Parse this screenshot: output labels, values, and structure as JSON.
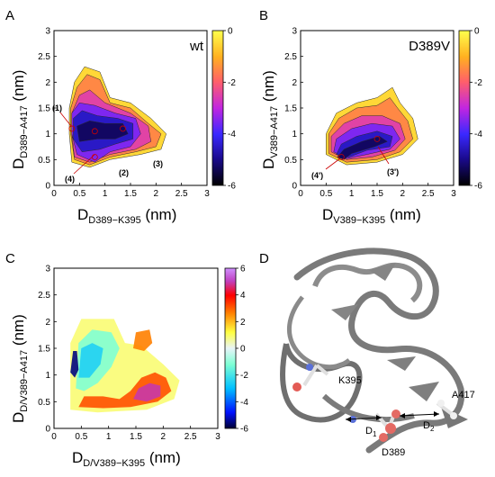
{
  "panels": [
    {
      "letter": "A",
      "tag": "wt",
      "xlabel": {
        "main": "D",
        "sub": "D389−K395",
        "unit": " (nm)"
      },
      "ylabel": {
        "main": "D",
        "sub": "D389−A417",
        "unit": " (nm)"
      },
      "peaks": [
        "(1)",
        "(2)",
        "(3)",
        "(4)"
      ]
    },
    {
      "letter": "B",
      "tag": "D389V",
      "xlabel": {
        "main": "D",
        "sub": "V389−K395",
        "unit": " (nm)"
      },
      "ylabel": {
        "main": "D",
        "sub": "V389−A417",
        "unit": " (nm)"
      },
      "peaks": [
        "(3')",
        "(4')"
      ]
    },
    {
      "letter": "C",
      "tag": "",
      "xlabel": {
        "main": "D",
        "sub": "D/V389−K395",
        "unit": " (nm)"
      },
      "ylabel": {
        "main": "D",
        "sub": "D/V389−A417",
        "unit": " (nm)"
      },
      "peaks": []
    },
    {
      "letter": "D",
      "tag": "",
      "residues": [
        "K395",
        "D389",
        "A417"
      ],
      "distances": [
        {
          "main": "D",
          "sub": "1"
        },
        {
          "main": "D",
          "sub": "2"
        }
      ]
    }
  ],
  "chart_data": [
    {
      "type": "heatmap",
      "panel": "A",
      "title": "wt",
      "xlabel": "D_D389−K395 (nm)",
      "ylabel": "D_D389−A417 (nm)",
      "xlim": [
        0,
        3
      ],
      "ylim": [
        0,
        3
      ],
      "xticks": [
        "0",
        "0.5",
        "1",
        "1.5",
        "2",
        "2.5",
        "3"
      ],
      "yticks": [
        "0",
        "0.5",
        "1",
        "1.5",
        "2",
        "2.5",
        "3"
      ],
      "colorbar": {
        "ticks": [
          "0",
          "-2",
          "-4",
          "-6"
        ],
        "range": [
          -6,
          0
        ],
        "colors": [
          "#000000",
          "#1a0a8c",
          "#3a28ff",
          "#c226e0",
          "#ff5f6a",
          "#ffb020",
          "#ffff4d"
        ]
      },
      "minima": [
        {
          "label": "(1)",
          "x": 0.35,
          "y": 1.1
        },
        {
          "label": "(2)",
          "x": 0.8,
          "y": 1.05
        },
        {
          "label": "(3)",
          "x": 1.35,
          "y": 1.1
        },
        {
          "label": "(4)",
          "x": 0.8,
          "y": 0.55
        }
      ],
      "levels": [
        {
          "value": -0.5,
          "points": [
            [
              0.3,
              1.5
            ],
            [
              0.4,
              2.0
            ],
            [
              0.6,
              2.3
            ],
            [
              0.9,
              2.2
            ],
            [
              1.1,
              1.7
            ],
            [
              1.5,
              1.6
            ],
            [
              1.9,
              1.3
            ],
            [
              2.2,
              1.0
            ],
            [
              2.1,
              0.7
            ],
            [
              1.7,
              0.6
            ],
            [
              1.1,
              0.5
            ],
            [
              0.7,
              0.35
            ],
            [
              0.35,
              0.45
            ],
            [
              0.3,
              1.0
            ]
          ]
        },
        {
          "value": -1.5,
          "points": [
            [
              0.33,
              1.5
            ],
            [
              0.45,
              1.9
            ],
            [
              0.65,
              2.15
            ],
            [
              0.9,
              2.05
            ],
            [
              1.1,
              1.6
            ],
            [
              1.5,
              1.5
            ],
            [
              1.85,
              1.2
            ],
            [
              2.1,
              1.0
            ],
            [
              2.0,
              0.75
            ],
            [
              1.6,
              0.65
            ],
            [
              1.1,
              0.55
            ],
            [
              0.7,
              0.4
            ],
            [
              0.4,
              0.5
            ],
            [
              0.33,
              1.0
            ]
          ]
        },
        {
          "value": -2.5,
          "points": [
            [
              0.35,
              1.4
            ],
            [
              0.5,
              1.75
            ],
            [
              0.7,
              1.85
            ],
            [
              1.0,
              1.6
            ],
            [
              1.5,
              1.4
            ],
            [
              1.85,
              1.15
            ],
            [
              1.9,
              0.85
            ],
            [
              1.6,
              0.7
            ],
            [
              1.1,
              0.6
            ],
            [
              0.7,
              0.45
            ],
            [
              0.4,
              0.55
            ],
            [
              0.35,
              1.0
            ]
          ]
        },
        {
          "value": -3.5,
          "points": [
            [
              0.35,
              1.4
            ],
            [
              0.5,
              1.6
            ],
            [
              0.8,
              1.55
            ],
            [
              1.2,
              1.4
            ],
            [
              1.6,
              1.3
            ],
            [
              1.7,
              1.0
            ],
            [
              1.5,
              0.75
            ],
            [
              1.1,
              0.65
            ],
            [
              0.8,
              0.45
            ],
            [
              0.45,
              0.6
            ],
            [
              0.35,
              1.0
            ]
          ]
        },
        {
          "value": -4.5,
          "points": [
            [
              0.38,
              1.3
            ],
            [
              0.55,
              1.45
            ],
            [
              0.85,
              1.35
            ],
            [
              1.25,
              1.3
            ],
            [
              1.55,
              1.2
            ],
            [
              1.55,
              0.9
            ],
            [
              1.2,
              0.8
            ],
            [
              0.9,
              0.7
            ],
            [
              0.55,
              0.65
            ],
            [
              0.38,
              0.9
            ]
          ]
        },
        {
          "value": -5.3,
          "points": [
            [
              0.45,
              1.15
            ],
            [
              0.7,
              1.25
            ],
            [
              1.0,
              1.2
            ],
            [
              1.35,
              1.2
            ],
            [
              1.45,
              1.0
            ],
            [
              1.2,
              0.9
            ],
            [
              0.85,
              0.9
            ],
            [
              0.5,
              0.85
            ]
          ]
        }
      ]
    },
    {
      "type": "heatmap",
      "panel": "B",
      "title": "D389V",
      "xlabel": "D_V389−K395 (nm)",
      "ylabel": "D_V389−A417 (nm)",
      "xlim": [
        0,
        3
      ],
      "ylim": [
        0,
        3
      ],
      "xticks": [
        "0",
        "0.5",
        "1",
        "1.5",
        "2",
        "2.5",
        "3"
      ],
      "yticks": [
        "0",
        "0.5",
        "1",
        "1.5",
        "2",
        "2.5",
        "3"
      ],
      "colorbar": {
        "ticks": [
          "0",
          "-2",
          "-4",
          "-6"
        ],
        "range": [
          -6,
          0
        ],
        "colors": [
          "#000000",
          "#1a0a8c",
          "#3a28ff",
          "#c226e0",
          "#ff5f6a",
          "#ffb020",
          "#ffff4d"
        ]
      },
      "minima": [
        {
          "label": "(3')",
          "x": 1.5,
          "y": 0.9
        },
        {
          "label": "(4')",
          "x": 0.8,
          "y": 0.55
        }
      ],
      "levels": [
        {
          "value": -0.5,
          "points": [
            [
              0.5,
              0.6
            ],
            [
              0.5,
              1.0
            ],
            [
              0.7,
              1.4
            ],
            [
              1.1,
              1.6
            ],
            [
              1.5,
              1.7
            ],
            [
              1.8,
              1.9
            ],
            [
              1.95,
              1.6
            ],
            [
              2.2,
              1.3
            ],
            [
              2.3,
              0.9
            ],
            [
              2.0,
              0.6
            ],
            [
              1.5,
              0.45
            ],
            [
              0.9,
              0.4
            ]
          ]
        },
        {
          "value": -1.5,
          "points": [
            [
              0.55,
              0.62
            ],
            [
              0.55,
              1.0
            ],
            [
              0.75,
              1.3
            ],
            [
              1.1,
              1.5
            ],
            [
              1.5,
              1.55
            ],
            [
              1.75,
              1.7
            ],
            [
              1.9,
              1.5
            ],
            [
              2.1,
              1.25
            ],
            [
              2.2,
              0.9
            ],
            [
              1.95,
              0.65
            ],
            [
              1.5,
              0.5
            ],
            [
              0.9,
              0.45
            ]
          ]
        },
        {
          "value": -2.5,
          "points": [
            [
              0.6,
              0.65
            ],
            [
              0.6,
              0.95
            ],
            [
              0.85,
              1.2
            ],
            [
              1.2,
              1.35
            ],
            [
              1.6,
              1.35
            ],
            [
              1.95,
              1.2
            ],
            [
              2.05,
              0.9
            ],
            [
              1.85,
              0.68
            ],
            [
              1.4,
              0.55
            ],
            [
              0.9,
              0.5
            ]
          ]
        },
        {
          "value": -3.5,
          "points": [
            [
              0.65,
              0.65
            ],
            [
              0.7,
              0.9
            ],
            [
              1.0,
              1.1
            ],
            [
              1.4,
              1.2
            ],
            [
              1.8,
              1.15
            ],
            [
              1.95,
              0.9
            ],
            [
              1.75,
              0.7
            ],
            [
              1.3,
              0.6
            ],
            [
              0.9,
              0.52
            ]
          ]
        },
        {
          "value": -4.5,
          "points": [
            [
              0.7,
              0.6
            ],
            [
              0.8,
              0.8
            ],
            [
              1.1,
              0.95
            ],
            [
              1.5,
              1.05
            ],
            [
              1.8,
              0.95
            ],
            [
              1.75,
              0.75
            ],
            [
              1.3,
              0.68
            ],
            [
              0.95,
              0.55
            ]
          ]
        },
        {
          "value": -5.3,
          "points": [
            [
              0.72,
              0.55
            ],
            [
              0.85,
              0.7
            ],
            [
              1.2,
              0.85
            ],
            [
              1.55,
              0.95
            ],
            [
              1.7,
              0.85
            ],
            [
              1.45,
              0.75
            ],
            [
              1.0,
              0.62
            ],
            [
              0.85,
              0.5
            ]
          ]
        }
      ]
    },
    {
      "type": "heatmap",
      "panel": "C",
      "xlabel": "D_D/V389−K395 (nm)",
      "ylabel": "D_D/V389−A417 (nm)",
      "xlim": [
        0,
        3
      ],
      "ylim": [
        0,
        3
      ],
      "xticks": [
        "0",
        "0.5",
        "1",
        "1.5",
        "2",
        "2.5",
        "3"
      ],
      "yticks": [
        "0",
        "0.5",
        "1",
        "1.5",
        "2",
        "2.5",
        "3"
      ],
      "colorbar": {
        "ticks": [
          "6",
          "4",
          "2",
          "0",
          "-2",
          "-4",
          "-6"
        ],
        "range": [
          -6,
          6
        ],
        "colors": [
          "#000033",
          "#0010ff",
          "#00c0ff",
          "#7fffd4",
          "#e8f4f8",
          "#ffff40",
          "#ff8000",
          "#ff0000",
          "#c040c0",
          "#d090ff"
        ]
      },
      "regions": [
        {
          "value": 0.3,
          "points": [
            [
              0.3,
              0.35
            ],
            [
              0.3,
              1.6
            ],
            [
              0.5,
              2.05
            ],
            [
              1.1,
              2.05
            ],
            [
              1.3,
              1.6
            ],
            [
              1.6,
              1.55
            ],
            [
              2.0,
              1.2
            ],
            [
              2.3,
              0.9
            ],
            [
              2.2,
              0.55
            ],
            [
              1.7,
              0.35
            ],
            [
              0.8,
              0.3
            ]
          ]
        },
        {
          "value": 2.5,
          "points": [
            [
              0.45,
              0.4
            ],
            [
              0.55,
              0.6
            ],
            [
              0.9,
              0.6
            ],
            [
              1.2,
              0.55
            ],
            [
              1.4,
              0.7
            ],
            [
              1.6,
              0.95
            ],
            [
              1.85,
              1.05
            ],
            [
              2.05,
              0.95
            ],
            [
              2.15,
              0.7
            ],
            [
              1.9,
              0.5
            ],
            [
              1.4,
              0.4
            ],
            [
              0.9,
              0.38
            ]
          ]
        },
        {
          "value": 4.5,
          "points": [
            [
              1.45,
              0.55
            ],
            [
              1.55,
              0.75
            ],
            [
              1.75,
              0.85
            ],
            [
              1.95,
              0.8
            ],
            [
              1.95,
              0.6
            ],
            [
              1.7,
              0.5
            ]
          ]
        },
        {
          "value": 2.0,
          "points": [
            [
              1.45,
              1.5
            ],
            [
              1.5,
              1.8
            ],
            [
              1.75,
              1.85
            ],
            [
              1.8,
              1.6
            ],
            [
              1.65,
              1.45
            ]
          ]
        },
        {
          "value": -2.0,
          "points": [
            [
              0.4,
              0.75
            ],
            [
              0.45,
              1.6
            ],
            [
              0.7,
              1.85
            ],
            [
              1.05,
              1.8
            ],
            [
              1.2,
              1.5
            ],
            [
              1.05,
              1.15
            ],
            [
              0.8,
              0.85
            ],
            [
              0.55,
              0.7
            ]
          ]
        },
        {
          "value": -3.0,
          "points": [
            [
              0.45,
              0.95
            ],
            [
              0.5,
              1.5
            ],
            [
              0.7,
              1.6
            ],
            [
              0.9,
              1.5
            ],
            [
              0.85,
              1.2
            ],
            [
              0.65,
              0.95
            ]
          ]
        },
        {
          "value": -5.5,
          "points": [
            [
              0.3,
              1.05
            ],
            [
              0.35,
              1.45
            ],
            [
              0.42,
              1.45
            ],
            [
              0.45,
              1.1
            ],
            [
              0.38,
              0.95
            ]
          ]
        }
      ]
    }
  ]
}
